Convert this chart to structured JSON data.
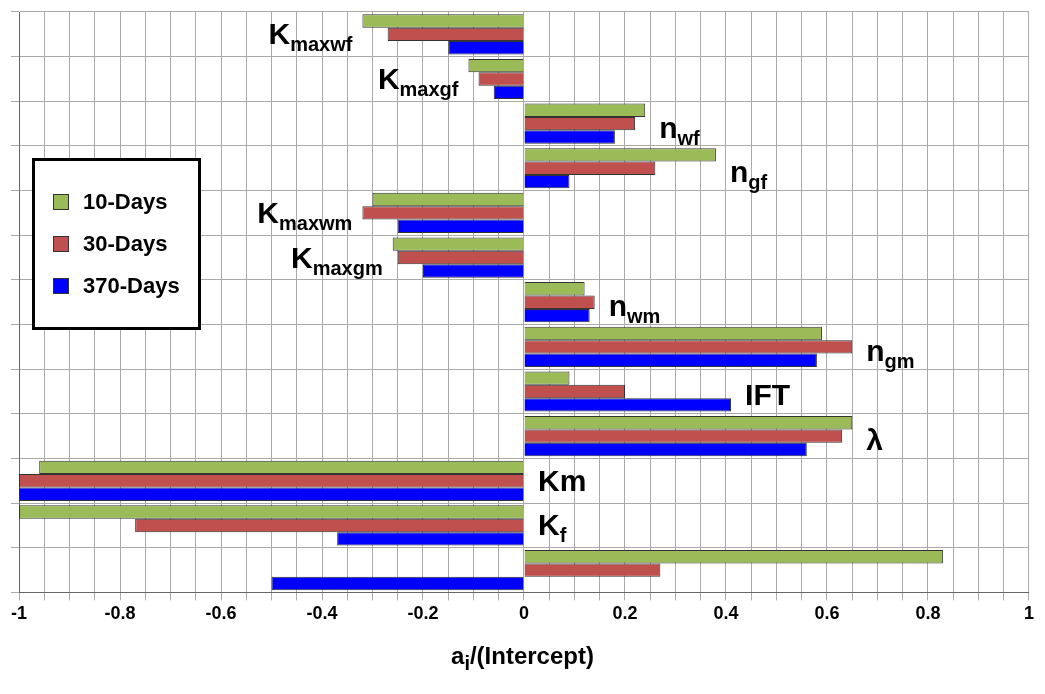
{
  "chart_data": {
    "type": "bar",
    "orientation": "horizontal",
    "xlabel": "a$_{i}$/(Intercept)",
    "categories": [
      "K$_{maxwf}$",
      "K$_{maxgf}$",
      "n$_{wf}$",
      "n$_{gf}$",
      "K$_{maxwm}$",
      "K$_{maxgm}$",
      "n$_{wm}$",
      "n$_{gm}$",
      "IFT",
      "λ",
      "Km",
      "K$_{f}$",
      null
    ],
    "series": [
      {
        "name": "10-Days",
        "color": "#9bbb59",
        "values": [
          -0.32,
          -0.11,
          0.24,
          0.38,
          -0.3,
          -0.26,
          0.12,
          0.59,
          0.09,
          0.65,
          -0.96,
          -1,
          0.83
        ]
      },
      {
        "name": "30-Days",
        "color": "#c0504d",
        "values": [
          -0.27,
          -0.09,
          0.22,
          0.26,
          -0.32,
          -0.25,
          0.14,
          0.65,
          0.2,
          0.63,
          -1,
          -0.77,
          0.27
        ]
      },
      {
        "name": "370-Days",
        "color": "#0000ff",
        "values": [
          -0.15,
          -0.06,
          0.18,
          0.09,
          -0.25,
          -0.2,
          0.13,
          0.58,
          0.41,
          0.56,
          -1,
          -0.37,
          -0.5
        ]
      }
    ],
    "xlim": [
      -1,
      1
    ],
    "xticks": [
      -1,
      {
        "value": -0.95,
        "label": null
      },
      {
        "value": -0.9,
        "label": null
      },
      {
        "value": -0.85,
        "label": null
      },
      -0.8,
      {
        "value": -0.75,
        "label": null
      },
      {
        "value": -0.7,
        "label": null
      },
      {
        "value": -0.65,
        "label": null
      },
      -0.6,
      {
        "value": -0.55,
        "label": null
      },
      {
        "value": -0.5,
        "label": null
      },
      {
        "value": -0.45,
        "label": null
      },
      -0.4,
      {
        "value": -0.35,
        "label": null
      },
      {
        "value": -0.3,
        "label": null
      },
      {
        "value": -0.25,
        "label": null
      },
      -0.2,
      {
        "value": -0.15,
        "label": null
      },
      {
        "value": -0.1,
        "label": null
      },
      {
        "value": -0.05,
        "label": null
      },
      0,
      {
        "value": 0.05,
        "label": null
      },
      {
        "value": 0.1,
        "label": null
      },
      {
        "value": 0.15,
        "label": null
      },
      0.2,
      {
        "value": 0.25,
        "label": null
      },
      {
        "value": 0.3,
        "label": null
      },
      {
        "value": 0.35,
        "label": null
      },
      0.4,
      {
        "value": 0.45,
        "label": null
      },
      {
        "value": 0.5,
        "label": null
      },
      {
        "value": 0.55,
        "label": null
      },
      0.6,
      {
        "value": 0.65,
        "label": null
      },
      {
        "value": 0.7,
        "label": null
      },
      {
        "value": 0.75,
        "label": null
      },
      0.8,
      {
        "value": 0.85,
        "label": null
      },
      {
        "value": 0.9,
        "label": null
      },
      {
        "value": 0.95,
        "label": null
      },
      1
    ],
    "grid": true,
    "legend": "left",
    "tick_labels": "x"
  }
}
